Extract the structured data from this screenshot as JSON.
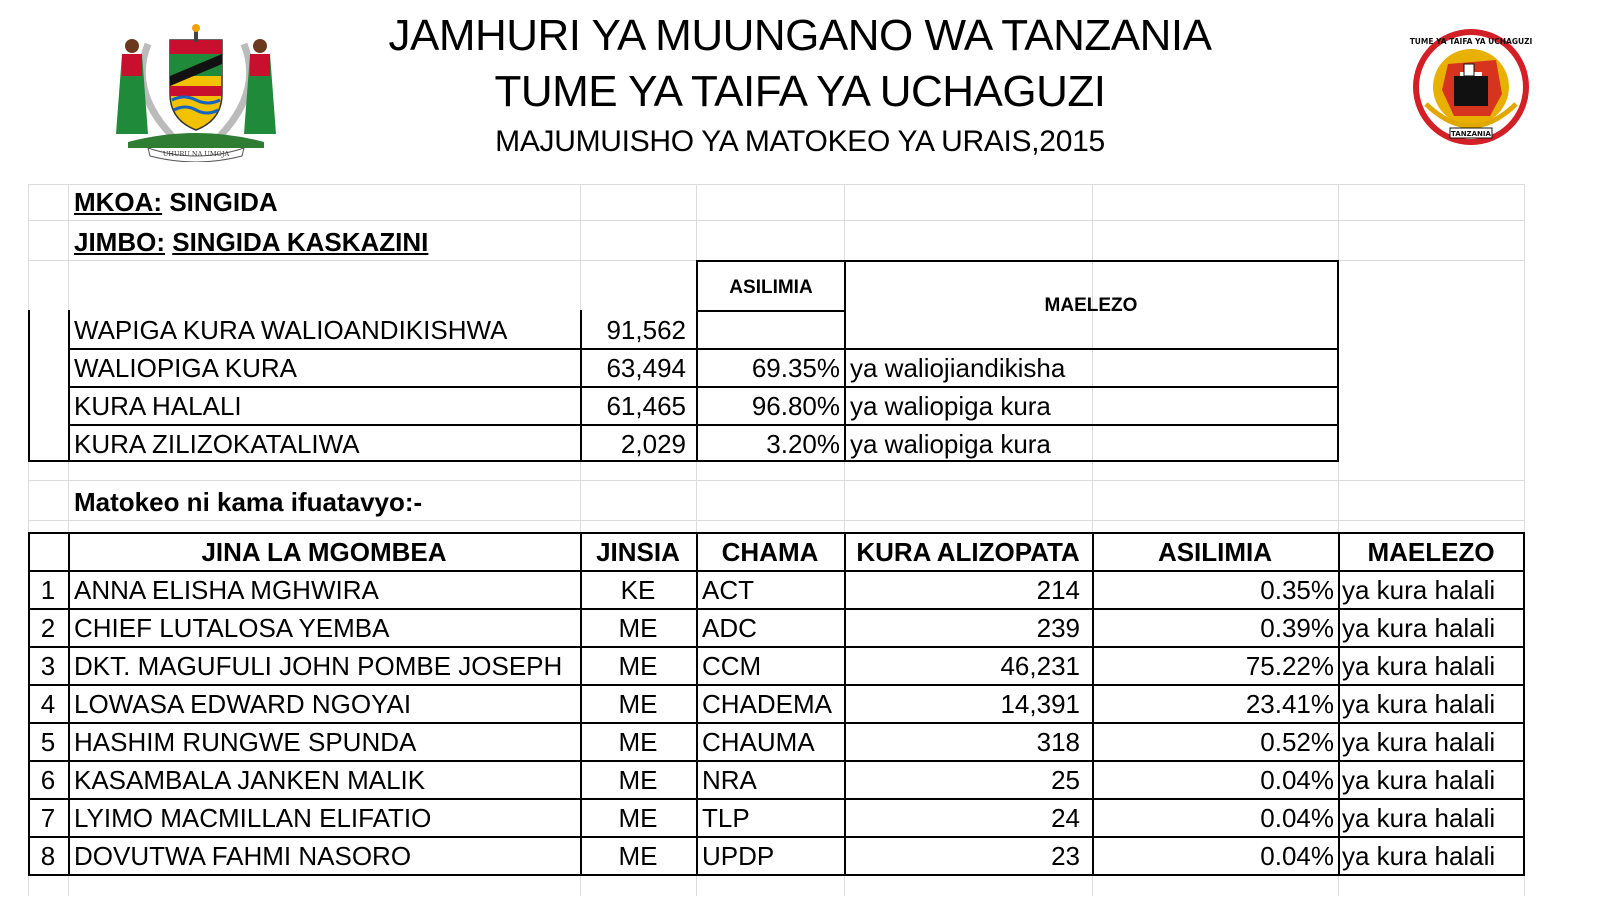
{
  "header": {
    "line1": "JAMHURI YA MUUNGANO WA TANZANIA",
    "line2": "TUME YA TAIFA YA UCHAGUZI",
    "line3": "MAJUMUISHO YA MATOKEO YA URAIS,2015",
    "coat_of_arms_motto": "UHURU NA UMOJA",
    "seal_text_top": "TUME YA TAIFA YA UCHAGUZI",
    "seal_text_bottom": "TANZANIA"
  },
  "region": {
    "label": "MKOA:",
    "value": "SINGIDA"
  },
  "constituency": {
    "label": "JIMBO:",
    "value": "SINGIDA KASKAZINI"
  },
  "summary": {
    "headers": {
      "asilimia": "ASILIMIA",
      "maelezo": "MAELEZO"
    },
    "rows": [
      {
        "label": "WAPIGA KURA WALIOANDIKISHWA",
        "value": "91,562",
        "percent": "",
        "note": ""
      },
      {
        "label": "WALIOPIGA KURA",
        "value": "63,494",
        "percent": "69.35%",
        "note": "ya waliojiandikisha"
      },
      {
        "label": "KURA HALALI",
        "value": "61,465",
        "percent": "96.80%",
        "note": "ya waliopiga kura"
      },
      {
        "label": "KURA ZILIZOKATALIWA",
        "value": "2,029",
        "percent": "3.20%",
        "note": "ya waliopiga kura"
      }
    ]
  },
  "results_intro": "Matokeo ni kama ifuatavyo:-",
  "results": {
    "headers": {
      "name": "JINA LA MGOMBEA",
      "gender": "JINSIA",
      "party": "CHAMA",
      "votes": "KURA ALIZOPATA",
      "percent": "ASILIMIA",
      "note": "MAELEZO"
    },
    "rows": [
      {
        "no": "1",
        "name": "ANNA ELISHA MGHWIRA",
        "gender": "KE",
        "party": "ACT",
        "votes": "214",
        "percent": "0.35%",
        "note": "ya kura halali"
      },
      {
        "no": "2",
        "name": "CHIEF LUTALOSA YEMBA",
        "gender": "ME",
        "party": "ADC",
        "votes": "239",
        "percent": "0.39%",
        "note": "ya kura halali"
      },
      {
        "no": "3",
        "name": "DKT. MAGUFULI JOHN POMBE JOSEPH",
        "gender": "ME",
        "party": "CCM",
        "votes": "46,231",
        "percent": "75.22%",
        "note": "ya kura halali"
      },
      {
        "no": "4",
        "name": "LOWASA EDWARD NGOYAI",
        "gender": "ME",
        "party": "CHADEMA",
        "votes": "14,391",
        "percent": "23.41%",
        "note": "ya kura halali"
      },
      {
        "no": "5",
        "name": "HASHIM RUNGWE SPUNDA",
        "gender": "ME",
        "party": "CHAUMA",
        "votes": "318",
        "percent": "0.52%",
        "note": "ya kura halali"
      },
      {
        "no": "6",
        "name": "KASAMBALA JANKEN MALIK",
        "gender": "ME",
        "party": "NRA",
        "votes": "25",
        "percent": "0.04%",
        "note": "ya kura halali"
      },
      {
        "no": "7",
        "name": "LYIMO MACMILLAN ELIFATIO",
        "gender": "ME",
        "party": "TLP",
        "votes": "24",
        "percent": "0.04%",
        "note": "ya kura halali"
      },
      {
        "no": "8",
        "name": "DOVUTWA FAHMI NASORO",
        "gender": "ME",
        "party": "UPDP",
        "votes": "23",
        "percent": "0.04%",
        "note": "ya kura halali"
      }
    ]
  },
  "colors": {
    "coat_red": "#c8102e",
    "coat_green": "#1f8a3a",
    "coat_yellow": "#f2c200",
    "coat_blue": "#1565c0",
    "seal_red": "#d31f26",
    "seal_gold": "#e0a800"
  }
}
